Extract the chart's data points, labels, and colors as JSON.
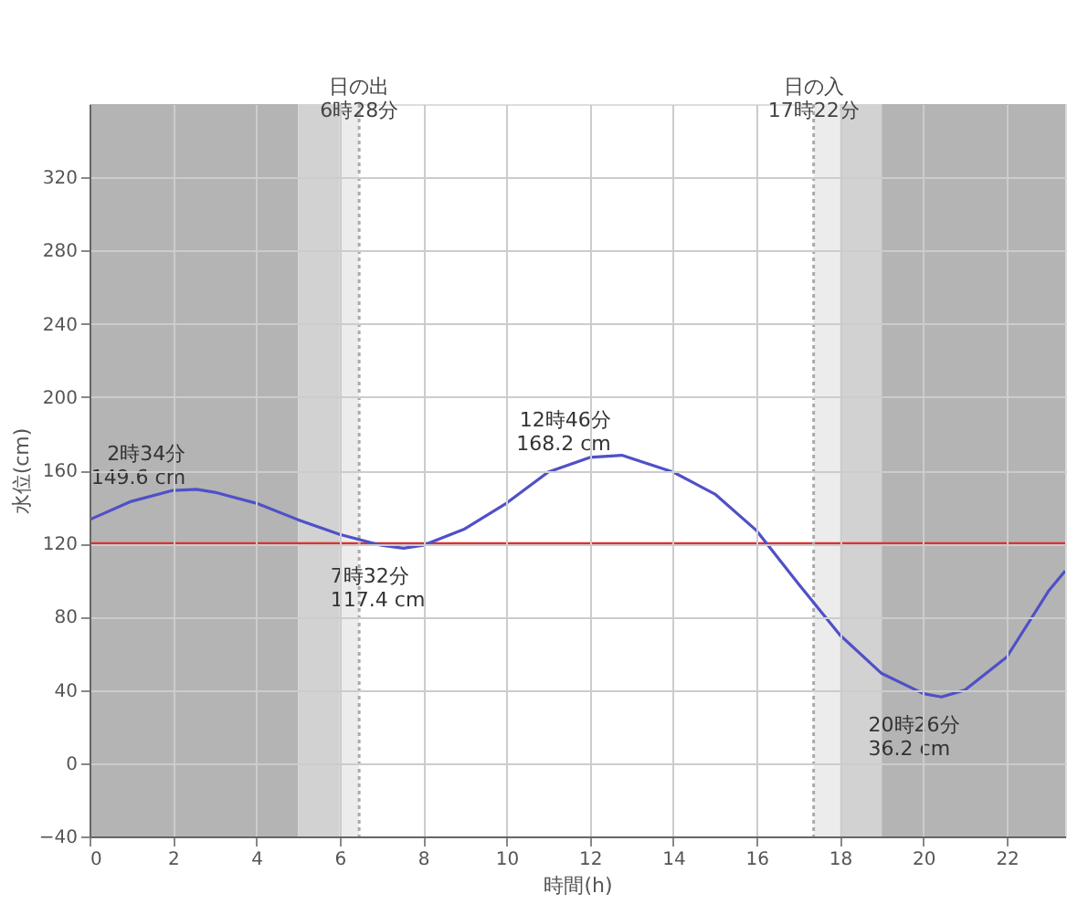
{
  "chart_data": {
    "type": "line",
    "xlabel": "時間(h)",
    "ylabel": "水位(cm)",
    "x": [
      0,
      1,
      2,
      2.567,
      3,
      4,
      5,
      6,
      7,
      7.533,
      8,
      9,
      10,
      11,
      12,
      12.767,
      14,
      15,
      16,
      17,
      18,
      19,
      20,
      20.433,
      21,
      22,
      23,
      23.4
    ],
    "series": [
      {
        "color": "#5050c8",
        "values": [
          133,
          143,
          149,
          149.6,
          148,
          142,
          133,
          125,
          119,
          117.4,
          119,
          128,
          142,
          159,
          167,
          168.2,
          159,
          147,
          127,
          98,
          70,
          49,
          38,
          36.2,
          40,
          58,
          94,
          105
        ]
      }
    ],
    "xlim": [
      0,
      23.4
    ],
    "ylim": [
      -40,
      360
    ],
    "xticks": [
      0,
      2,
      4,
      6,
      8,
      10,
      12,
      14,
      16,
      18,
      20,
      22
    ],
    "yticks": [
      -40,
      0,
      40,
      80,
      120,
      160,
      200,
      240,
      280,
      320
    ],
    "grid": true,
    "marker": "none",
    "line_style": "solid",
    "bands": [
      {
        "axis": "x",
        "from": 0,
        "to": 5,
        "color": "#b4b4b4"
      },
      {
        "axis": "x",
        "from": 5,
        "to": 6,
        "color": "#d2d2d2"
      },
      {
        "axis": "x",
        "from": 6,
        "to": 6.467,
        "color": "#ececec"
      },
      {
        "axis": "x",
        "from": 17.367,
        "to": 18,
        "color": "#ececec"
      },
      {
        "axis": "x",
        "from": 18,
        "to": 19,
        "color": "#d2d2d2"
      },
      {
        "axis": "x",
        "from": 19,
        "to": 23.4,
        "color": "#b4b4b4"
      }
    ],
    "ref_lines": [
      {
        "axis": "y",
        "value": 120,
        "color": "#e03030",
        "line_style": "solid"
      },
      {
        "axis": "x",
        "value": 6.467,
        "label": "日の出\n6時28分",
        "color": "#aaaaaa",
        "line_style": "dotted"
      },
      {
        "axis": "x",
        "value": 17.367,
        "label": "日の入\n17時22分",
        "color": "#aaaaaa",
        "line_style": "dotted"
      }
    ],
    "annotations": [
      {
        "text": "2時34分\n149.6 cm",
        "x": 2.567,
        "y": 149.6
      },
      {
        "text": "7時32分\n117.4 cm",
        "x": 7.533,
        "y": 117.4
      },
      {
        "text": "12時46分\n168.2 cm",
        "x": 12.767,
        "y": 168.2
      },
      {
        "text": "20時26分\n36.2 cm",
        "x": 20.433,
        "y": 36.2
      }
    ]
  }
}
